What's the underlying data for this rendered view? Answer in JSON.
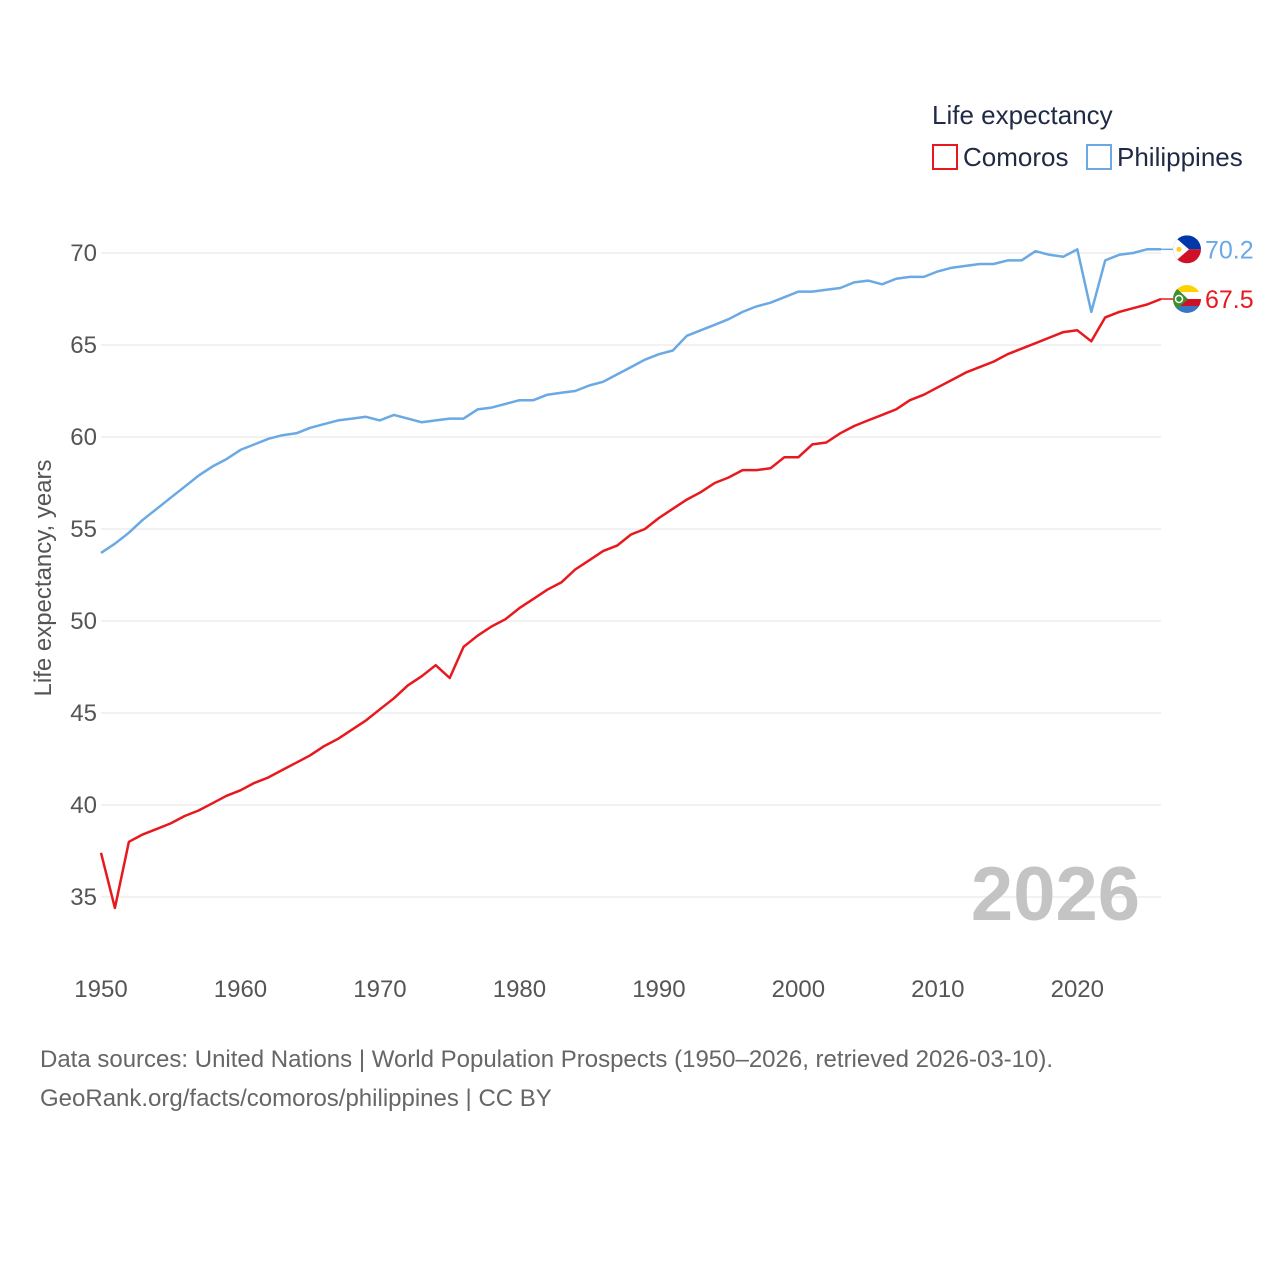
{
  "chart_data": {
    "type": "line",
    "legend_title": "Life expectancy",
    "ylabel": "Life expectancy, years",
    "xlabel": "",
    "xlim": [
      1950,
      2026
    ],
    "ylim": [
      32,
      73
    ],
    "x_ticks": [
      1950,
      1960,
      1970,
      1980,
      1990,
      2000,
      2010,
      2020
    ],
    "y_ticks": [
      35,
      40,
      45,
      50,
      55,
      60,
      65,
      70
    ],
    "year_watermark": "2026",
    "legend_position": "top-right",
    "x": [
      1950,
      1951,
      1952,
      1953,
      1954,
      1955,
      1956,
      1957,
      1958,
      1959,
      1960,
      1961,
      1962,
      1963,
      1964,
      1965,
      1966,
      1967,
      1968,
      1969,
      1970,
      1971,
      1972,
      1973,
      1974,
      1975,
      1976,
      1977,
      1978,
      1979,
      1980,
      1981,
      1982,
      1983,
      1984,
      1985,
      1986,
      1987,
      1988,
      1989,
      1990,
      1991,
      1992,
      1993,
      1994,
      1995,
      1996,
      1997,
      1998,
      1999,
      2000,
      2001,
      2002,
      2003,
      2004,
      2005,
      2006,
      2007,
      2008,
      2009,
      2010,
      2011,
      2012,
      2013,
      2014,
      2015,
      2016,
      2017,
      2018,
      2019,
      2020,
      2021,
      2022,
      2023,
      2024,
      2025,
      2026
    ],
    "series": [
      {
        "name": "Comoros",
        "color": "#e8191e",
        "end_label": "67.5",
        "flag": "comoros-flag",
        "values": [
          37.4,
          34.4,
          38.0,
          38.4,
          38.7,
          39.0,
          39.4,
          39.7,
          40.1,
          40.5,
          40.8,
          41.2,
          41.5,
          41.9,
          42.3,
          42.7,
          43.2,
          43.6,
          44.1,
          44.6,
          45.2,
          45.8,
          46.5,
          47.0,
          47.6,
          46.9,
          48.6,
          49.2,
          49.7,
          50.1,
          50.7,
          51.2,
          51.7,
          52.1,
          52.8,
          53.3,
          53.8,
          54.1,
          54.7,
          55.0,
          55.6,
          56.1,
          56.6,
          57.0,
          57.5,
          57.8,
          58.2,
          58.2,
          58.3,
          58.9,
          58.9,
          59.6,
          59.7,
          60.2,
          60.6,
          60.9,
          61.2,
          61.5,
          62.0,
          62.3,
          62.7,
          63.1,
          63.5,
          63.8,
          64.1,
          64.5,
          64.8,
          65.1,
          65.4,
          65.7,
          65.8,
          65.2,
          66.5,
          66.8,
          67.0,
          67.2,
          67.5
        ]
      },
      {
        "name": "Philippines",
        "color": "#6aa9e3",
        "end_label": "70.2",
        "flag": "philippines-flag",
        "values": [
          53.7,
          54.2,
          54.8,
          55.5,
          56.1,
          56.7,
          57.3,
          57.9,
          58.4,
          58.8,
          59.3,
          59.6,
          59.9,
          60.1,
          60.2,
          60.5,
          60.7,
          60.9,
          61.0,
          61.1,
          60.9,
          61.2,
          61.0,
          60.8,
          60.9,
          61.0,
          61.0,
          61.5,
          61.6,
          61.8,
          62.0,
          62.0,
          62.3,
          62.4,
          62.5,
          62.8,
          63.0,
          63.4,
          63.8,
          64.2,
          64.5,
          64.7,
          65.5,
          65.8,
          66.1,
          66.4,
          66.8,
          67.1,
          67.3,
          67.6,
          67.9,
          67.9,
          68.0,
          68.1,
          68.4,
          68.5,
          68.3,
          68.6,
          68.7,
          68.7,
          69.0,
          69.2,
          69.3,
          69.4,
          69.4,
          69.6,
          69.6,
          70.1,
          69.9,
          69.8,
          70.2,
          66.8,
          69.6,
          69.9,
          70.0,
          70.2,
          70.2
        ]
      }
    ]
  },
  "source": {
    "line1": "Data sources: United Nations | World Population Prospects (1950–2026, retrieved 2026-03-10).",
    "line2": "GeoRank.org/facts/comoros/philippines | CC BY"
  }
}
